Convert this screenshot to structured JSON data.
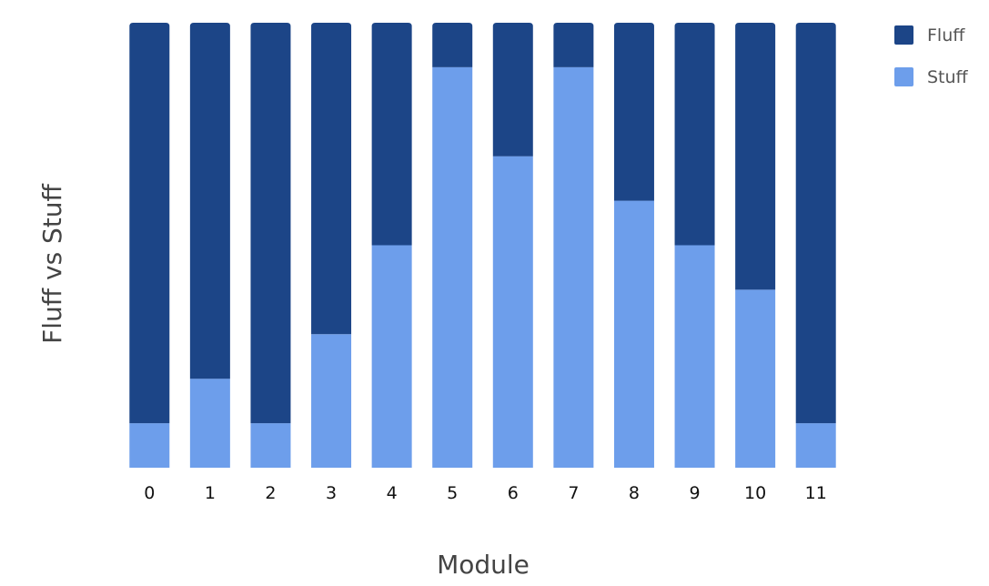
{
  "chart_data": {
    "type": "bar",
    "stacked": true,
    "categories": [
      "0",
      "1",
      "2",
      "3",
      "4",
      "5",
      "6",
      "7",
      "8",
      "9",
      "10",
      "11"
    ],
    "series": [
      {
        "name": "Stuff",
        "color": "#6d9eeb",
        "values": [
          1,
          2,
          1,
          3,
          5,
          9,
          7,
          9,
          6,
          5,
          4,
          1
        ]
      },
      {
        "name": "Fluff",
        "color": "#1c4587",
        "values": [
          9,
          8,
          9,
          7,
          5,
          1,
          3,
          1,
          4,
          5,
          6,
          9
        ]
      }
    ],
    "legend_order": [
      "Fluff",
      "Stuff"
    ],
    "xlabel": "Module",
    "ylabel": "Fluff vs Stuff",
    "ylim": [
      0,
      10
    ],
    "grid": false,
    "legend_position": "top-right",
    "y_ticks_visible": false
  }
}
